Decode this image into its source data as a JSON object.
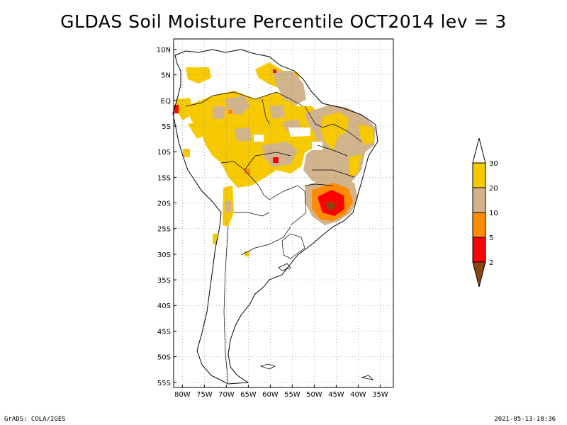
{
  "title": "GLDAS Soil Moisture Percentile OCT2014 lev = 3",
  "footer": {
    "left": "GrADS: COLA/IGES",
    "right": "2021-05-13-18:36"
  },
  "map": {
    "lat_labels": [
      "10N",
      "5N",
      "EQ",
      "5S",
      "10S",
      "15S",
      "20S",
      "25S",
      "30S",
      "35S",
      "40S",
      "45S",
      "50S",
      "55S"
    ],
    "lon_labels": [
      "80W",
      "75W",
      "70W",
      "65W",
      "60W",
      "55W",
      "50W",
      "45W",
      "40W",
      "35W"
    ],
    "lat_values": [
      10,
      5,
      0,
      -5,
      -10,
      -15,
      -20,
      -25,
      -30,
      -35,
      -40,
      -45,
      -50,
      -55
    ],
    "lon_values": [
      -80,
      -75,
      -70,
      -65,
      -60,
      -55,
      -50,
      -45,
      -40,
      -35
    ],
    "lon_range": [
      -82,
      -32
    ],
    "lat_range": [
      -56,
      12
    ]
  },
  "legend": {
    "labels": [
      "30",
      "20",
      "10",
      "5",
      "2"
    ],
    "colors": {
      "gt30": "#ffffff",
      "20-30": "#f7c900",
      "10-20": "#d2b48c",
      "5-10": "#ff8c00",
      "2-5": "#ff0000",
      "lt2": "#8b4513"
    }
  }
}
